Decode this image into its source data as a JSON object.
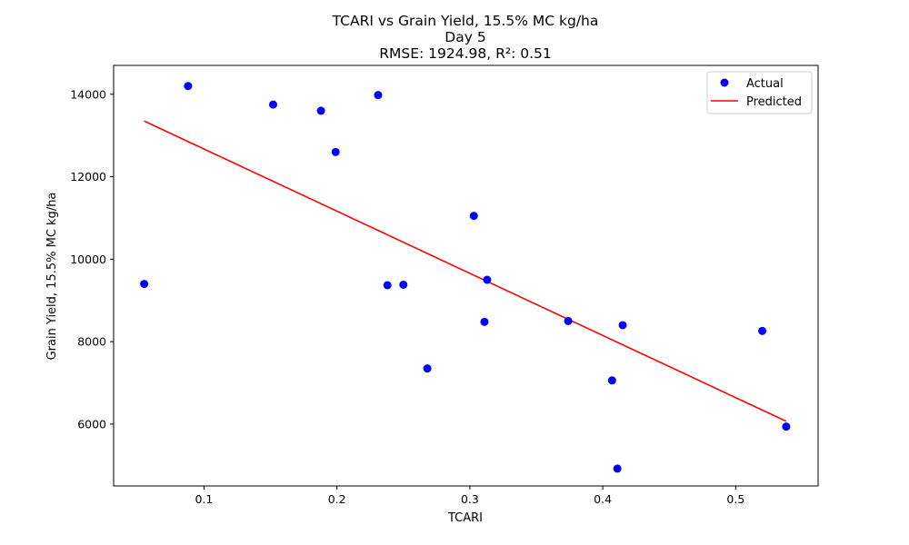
{
  "chart_data": {
    "type": "scatter",
    "title_lines": [
      "TCARI vs Grain Yield, 15.5% MC kg/ha",
      "Day 5",
      "RMSE: 1924.98, R²: 0.51"
    ],
    "xlabel": "TCARI",
    "ylabel": "Grain Yield, 15.5% MC kg/ha",
    "xlim": [
      0.032,
      0.562
    ],
    "ylim": [
      4500,
      14700
    ],
    "xticks": [
      0.1,
      0.2,
      0.3,
      0.4,
      0.5
    ],
    "xtick_labels": [
      "0.1",
      "0.2",
      "0.3",
      "0.4",
      "0.5"
    ],
    "yticks": [
      6000,
      8000,
      10000,
      12000,
      14000
    ],
    "ytick_labels": [
      "6000",
      "8000",
      "10000",
      "12000",
      "14000"
    ],
    "grid": false,
    "legend_position": "upper right",
    "series": [
      {
        "name": "Actual",
        "kind": "points",
        "color": "#0000ff",
        "x": [
          0.055,
          0.088,
          0.152,
          0.188,
          0.199,
          0.231,
          0.238,
          0.25,
          0.268,
          0.303,
          0.311,
          0.313,
          0.374,
          0.407,
          0.411,
          0.415,
          0.52,
          0.538
        ],
        "y": [
          9400,
          14200,
          13750,
          13600,
          12600,
          13980,
          9370,
          9380,
          7350,
          11050,
          8480,
          9500,
          8500,
          7060,
          4920,
          8400,
          8260,
          5940
        ]
      },
      {
        "name": "Predicted",
        "kind": "line",
        "color": "#ff0000",
        "x": [
          0.055,
          0.538
        ],
        "y": [
          13350,
          6070
        ]
      }
    ]
  }
}
